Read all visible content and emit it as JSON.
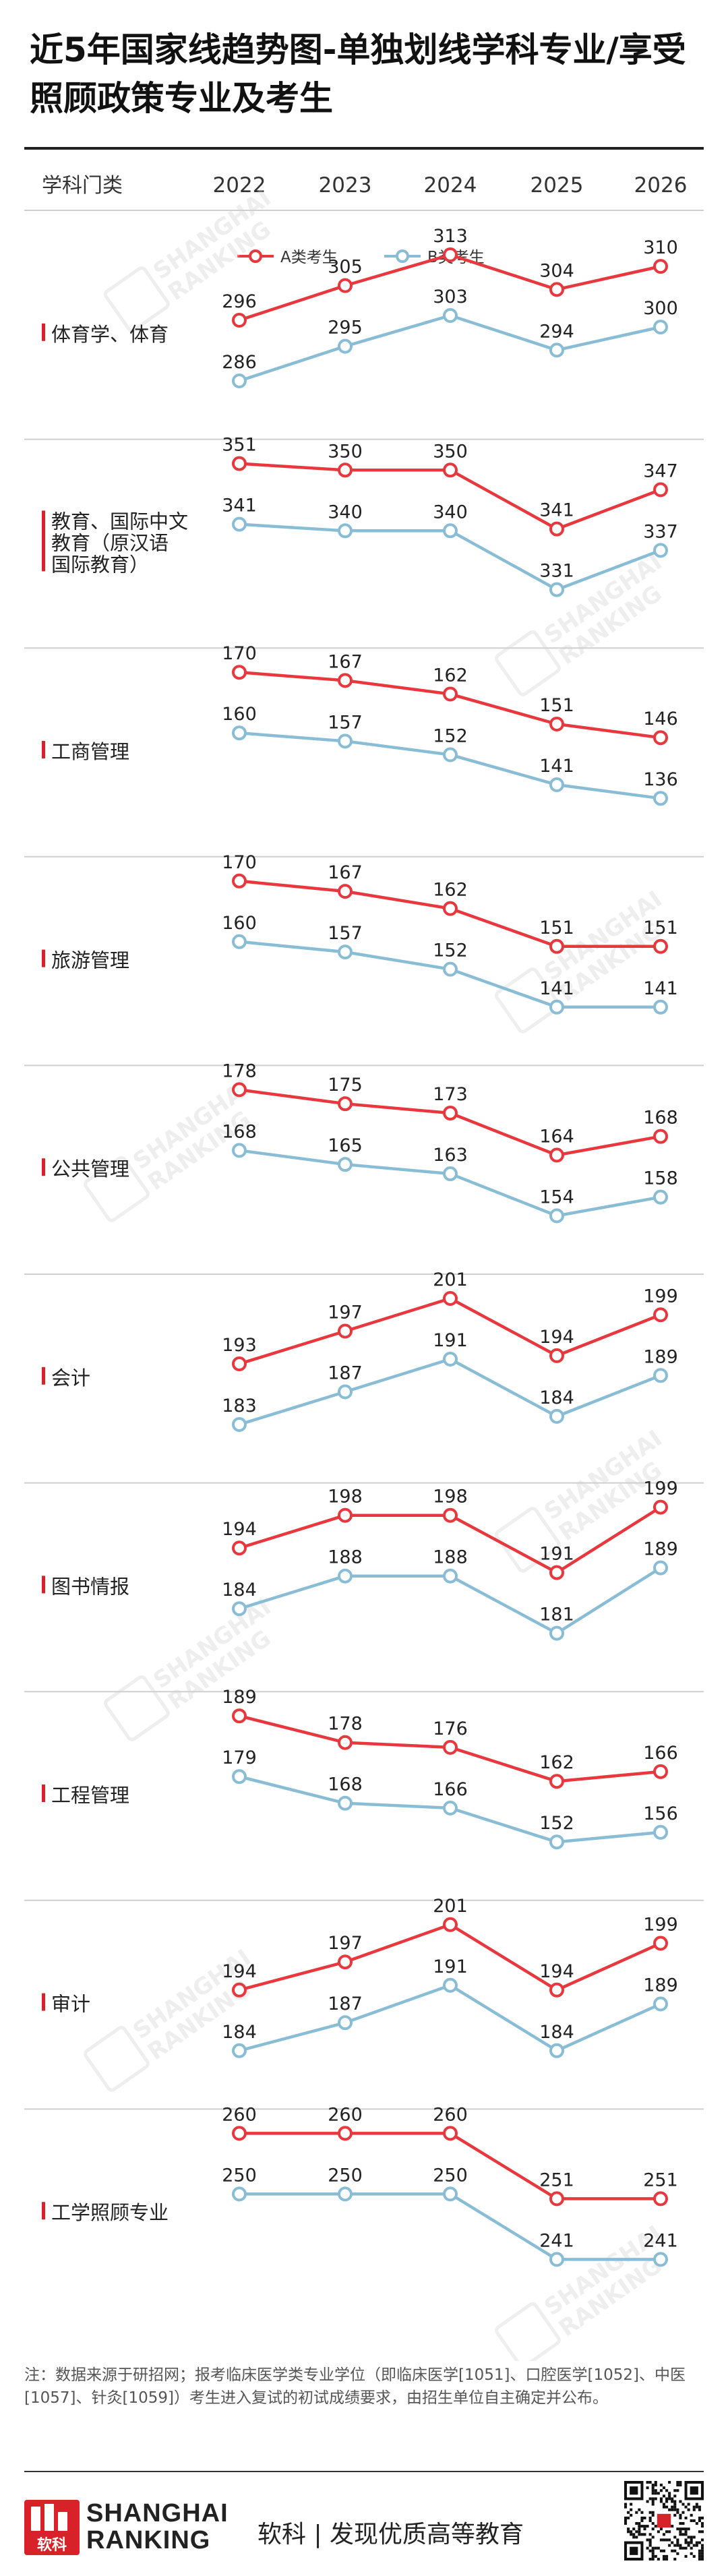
{
  "header": {
    "title": "近5年国家线趋势图-单独划线学科专业/享受照顾政策专业及考生",
    "column_header": "学科门类"
  },
  "colors": {
    "series_a": "#e8373d",
    "series_b": "#89bdd6",
    "category_bar": "#d72229",
    "rule": "#222222",
    "watermark": "#d0d0d0"
  },
  "chart_data": {
    "type": "line",
    "x": [
      "2022",
      "2023",
      "2024",
      "2025",
      "2026"
    ],
    "series_names": [
      "A类考生",
      "B类考生"
    ],
    "legend_position": "top-center",
    "grid": false,
    "panels": [
      {
        "category": "体育学、体育",
        "series": [
          {
            "name": "A类考生",
            "values": [
              296,
              305,
              313,
              304,
              310
            ]
          },
          {
            "name": "B类考生",
            "values": [
              286,
              295,
              303,
              294,
              300
            ]
          }
        ]
      },
      {
        "category": "教育、国际中文教育（原汉语国际教育）",
        "series": [
          {
            "name": "A类考生",
            "values": [
              351,
              350,
              350,
              341,
              347
            ]
          },
          {
            "name": "B类考生",
            "values": [
              341,
              340,
              340,
              331,
              337
            ]
          }
        ]
      },
      {
        "category": "工商管理",
        "series": [
          {
            "name": "A类考生",
            "values": [
              170,
              167,
              162,
              151,
              146
            ]
          },
          {
            "name": "B类考生",
            "values": [
              160,
              157,
              152,
              141,
              136
            ]
          }
        ]
      },
      {
        "category": "旅游管理",
        "series": [
          {
            "name": "A类考生",
            "values": [
              170,
              167,
              162,
              151,
              151
            ]
          },
          {
            "name": "B类考生",
            "values": [
              160,
              157,
              152,
              141,
              141
            ]
          }
        ]
      },
      {
        "category": "公共管理",
        "series": [
          {
            "name": "A类考生",
            "values": [
              178,
              175,
              173,
              164,
              168
            ]
          },
          {
            "name": "B类考生",
            "values": [
              168,
              165,
              163,
              154,
              158
            ]
          }
        ]
      },
      {
        "category": "会计",
        "series": [
          {
            "name": "A类考生",
            "values": [
              193,
              197,
              201,
              194,
              199
            ]
          },
          {
            "name": "B类考生",
            "values": [
              183,
              187,
              191,
              184,
              189
            ]
          }
        ]
      },
      {
        "category": "图书情报",
        "series": [
          {
            "name": "A类考生",
            "values": [
              194,
              198,
              198,
              191,
              199
            ]
          },
          {
            "name": "B类考生",
            "values": [
              184,
              188,
              188,
              181,
              189
            ]
          }
        ]
      },
      {
        "category": "工程管理",
        "series": [
          {
            "name": "A类考生",
            "values": [
              189,
              178,
              176,
              162,
              166
            ]
          },
          {
            "name": "B类考生",
            "values": [
              179,
              168,
              166,
              152,
              156
            ]
          }
        ]
      },
      {
        "category": "审计",
        "series": [
          {
            "name": "A类考生",
            "values": [
              194,
              197,
              201,
              194,
              199
            ]
          },
          {
            "name": "B类考生",
            "values": [
              184,
              187,
              191,
              184,
              189
            ]
          }
        ]
      },
      {
        "category": "工学照顾专业",
        "series": [
          {
            "name": "A类考生",
            "values": [
              260,
              260,
              260,
              251,
              251
            ]
          },
          {
            "name": "B类考生",
            "values": [
              250,
              250,
              250,
              241,
              241
            ]
          }
        ]
      }
    ]
  },
  "watermark": {
    "text": "SHANGHAI RANKING",
    "logo": "软科"
  },
  "note": "注：数据来源于研招网；报考临床医学类专业学位（即临床医学[1051]、口腔医学[1052]、中医[1057]、针灸[1059]）考生进入复试的初试成绩要求，由招生单位自主确定并公布。",
  "footer": {
    "logo_text": "软科",
    "brand_line1": "SHANGHAI",
    "brand_line2": "RANKING",
    "slogan": "软科 | 发现优质高等教育",
    "qr_icon": "qr-code-icon"
  }
}
